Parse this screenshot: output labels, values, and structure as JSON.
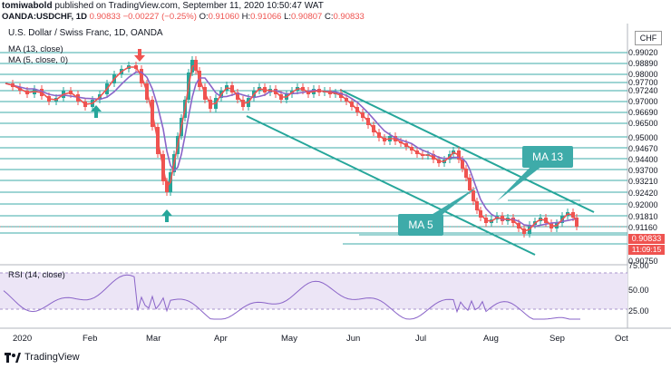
{
  "header": {
    "author": "tomiwabold",
    "published_text": "published on TradingView.com, September 11, 2020 10:50:47 WAT",
    "symbol": "OANDA:USDCHF, 1D",
    "last": "0.90833",
    "change": "−0.00227 (−0.25%)",
    "open_label": "O:",
    "open": "0.91060",
    "high_label": "H:",
    "high": "0.91066",
    "low_label": "L:",
    "low": "0.90807",
    "close_label": "C:",
    "close": "0.90833"
  },
  "legend": {
    "title": "U.S. Dollar / Swiss Franc, 1D, OANDA",
    "ma13": "MA (13, close)",
    "ma5": "MA (5, close, 0)",
    "rsi": "RSI (14, close)"
  },
  "currency": "CHF",
  "price_axis": [
    "0.99020",
    "0.98890",
    "0.98000",
    "0.97700",
    "0.97240",
    "0.97000",
    "0.96690",
    "0.96500",
    "0.95000",
    "0.94670",
    "0.94400",
    "0.93700",
    "0.93210",
    "0.92420",
    "0.92000",
    "0.91810",
    "0.91160",
    "0.90750"
  ],
  "price_tag": "0.90833",
  "time_tag": "11:09:15",
  "rsi_axis": [
    "75.00",
    "50.00",
    "25.00"
  ],
  "x_axis": [
    "2020",
    "Feb",
    "Mar",
    "Apr",
    "May",
    "Jun",
    "Jul",
    "Aug",
    "Sep",
    "Oct"
  ],
  "annotations": {
    "ma13": "MA 13",
    "ma5": "MA 5"
  },
  "footer": {
    "brand": "TradingView"
  },
  "colors": {
    "up": "#26a69a",
    "down": "#ef5350",
    "ma13": "#8a64c8",
    "ma5": "#ef5350",
    "rsi": "#8a64c8",
    "level": "#3eaba9",
    "channel": "#26a69a"
  }
}
